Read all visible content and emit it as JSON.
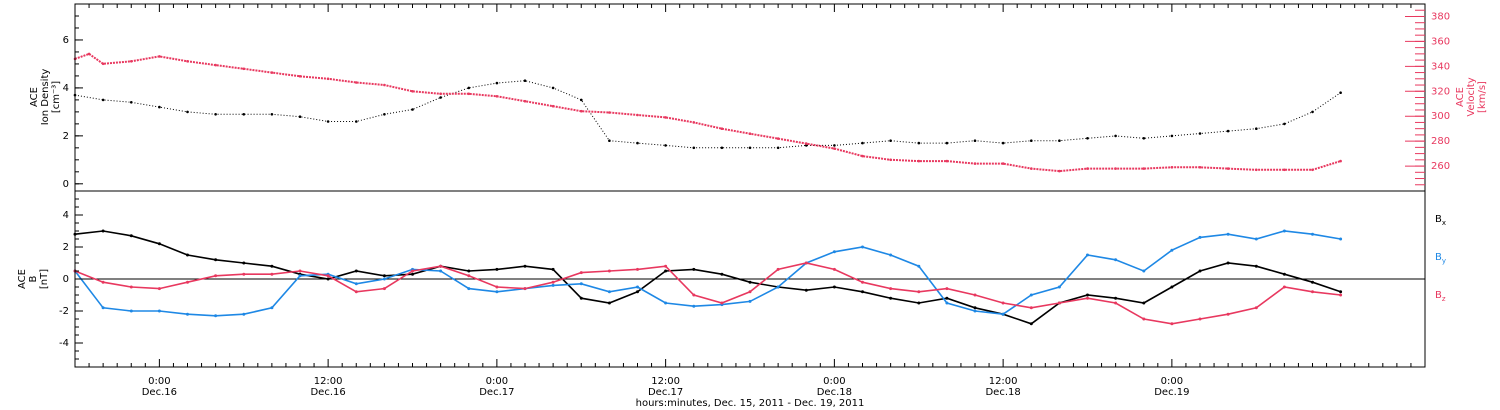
{
  "colors": {
    "black": "#000000",
    "blue": "#1e88e5",
    "red": "#e8385f"
  },
  "chart_data": [
    {
      "type": "scatter",
      "panel": "top",
      "left_axis_label_lines": [
        "ACE",
        "Ion Density",
        "[cm⁻³]"
      ],
      "right_axis_label_lines": [
        "ACE",
        "Velocity",
        "[km/s]"
      ],
      "ylim_left": [
        -0.3,
        7.5
      ],
      "ylim_right": [
        240,
        390
      ],
      "yticks_left": [
        "0",
        "2",
        "4",
        "6"
      ],
      "yticks_right": [
        "260",
        "280",
        "300",
        "320",
        "340",
        "360",
        "380"
      ],
      "series": [
        {
          "axis": "left",
          "color": "#000000",
          "x_hours": [
            0,
            2,
            4,
            6,
            8,
            10,
            12,
            14,
            16,
            18,
            20,
            22,
            24,
            26,
            28,
            30,
            32,
            34,
            36,
            38,
            40,
            42,
            44,
            46,
            48,
            50,
            52,
            54,
            56,
            58,
            60,
            62,
            64,
            66,
            68,
            70,
            72,
            74,
            76,
            78,
            80,
            82,
            84,
            86,
            88,
            90
          ],
          "values": [
            3.7,
            3.5,
            3.4,
            3.2,
            3.0,
            2.9,
            2.9,
            2.9,
            2.8,
            2.6,
            2.6,
            2.9,
            3.1,
            3.6,
            4.0,
            4.2,
            4.3,
            4.0,
            3.5,
            1.8,
            1.7,
            1.6,
            1.5,
            1.5,
            1.5,
            1.5,
            1.6,
            1.6,
            1.7,
            1.8,
            1.7,
            1.7,
            1.8,
            1.7,
            1.8,
            1.8,
            1.9,
            2.0,
            1.9,
            2.0,
            2.1,
            2.2,
            2.3,
            2.5,
            3.0,
            3.8
          ]
        },
        {
          "axis": "right",
          "color": "#e8385f",
          "x_hours": [
            0,
            1,
            2,
            4,
            6,
            8,
            10,
            12,
            14,
            16,
            18,
            20,
            22,
            24,
            26,
            28,
            30,
            32,
            34,
            36,
            38,
            40,
            42,
            44,
            46,
            48,
            50,
            52,
            54,
            56,
            58,
            60,
            62,
            64,
            66,
            68,
            70,
            72,
            74,
            76,
            78,
            80,
            82,
            84,
            86,
            88,
            90
          ],
          "values": [
            346,
            350,
            342,
            344,
            348,
            344,
            341,
            338,
            335,
            332,
            330,
            327,
            325,
            320,
            318,
            318,
            316,
            312,
            308,
            304,
            303,
            301,
            299,
            295,
            290,
            286,
            282,
            278,
            274,
            268,
            265,
            264,
            264,
            262,
            262,
            258,
            256,
            258,
            258,
            258,
            259,
            259,
            258,
            257,
            257,
            257,
            264
          ]
        }
      ]
    },
    {
      "type": "scatter",
      "panel": "bottom",
      "left_axis_label_lines": [
        "ACE",
        "B",
        "[nT]"
      ],
      "ylim": [
        -5.5,
        5.5
      ],
      "yticks": [
        "-4",
        "-2",
        "0",
        "2",
        "4"
      ],
      "series": [
        {
          "name": "B",
          "subscript": "x",
          "color": "#000000",
          "x_hours": [
            0,
            2,
            4,
            6,
            8,
            10,
            12,
            14,
            16,
            18,
            20,
            22,
            24,
            26,
            28,
            30,
            32,
            34,
            36,
            38,
            40,
            42,
            44,
            46,
            48,
            50,
            52,
            54,
            56,
            58,
            60,
            62,
            64,
            66,
            68,
            70,
            72,
            74,
            76,
            78,
            80,
            82,
            84,
            86,
            88,
            90
          ],
          "values": [
            2.8,
            3.0,
            2.7,
            2.2,
            1.5,
            1.2,
            1.0,
            0.8,
            0.3,
            0.0,
            0.5,
            0.2,
            0.3,
            0.8,
            0.5,
            0.6,
            0.8,
            0.6,
            -1.2,
            -1.5,
            -0.8,
            0.5,
            0.6,
            0.3,
            -0.2,
            -0.5,
            -0.7,
            -0.5,
            -0.8,
            -1.2,
            -1.5,
            -1.2,
            -1.8,
            -2.2,
            -2.8,
            -1.5,
            -1.0,
            -1.2,
            -1.5,
            -0.5,
            0.5,
            1.0,
            0.8,
            0.3,
            -0.2,
            -0.8
          ]
        },
        {
          "name": "B",
          "subscript": "y",
          "color": "#1e88e5",
          "x_hours": [
            0,
            2,
            4,
            6,
            8,
            10,
            12,
            14,
            16,
            18,
            20,
            22,
            24,
            26,
            28,
            30,
            32,
            34,
            36,
            38,
            40,
            42,
            44,
            46,
            48,
            50,
            52,
            54,
            56,
            58,
            60,
            62,
            64,
            66,
            68,
            70,
            72,
            74,
            76,
            78,
            80,
            82,
            84,
            86,
            88,
            90
          ],
          "values": [
            0.5,
            -1.8,
            -2.0,
            -2.0,
            -2.2,
            -2.3,
            -2.2,
            -1.8,
            0.2,
            0.3,
            -0.3,
            0.0,
            0.6,
            0.5,
            -0.6,
            -0.8,
            -0.6,
            -0.4,
            -0.3,
            -0.8,
            -0.5,
            -1.5,
            -1.7,
            -1.6,
            -1.4,
            -0.5,
            1.0,
            1.7,
            2.0,
            1.5,
            0.8,
            -1.5,
            -2.0,
            -2.2,
            -1.0,
            -0.5,
            1.5,
            1.2,
            0.5,
            1.8,
            2.6,
            2.8,
            2.5,
            3.0,
            2.8,
            2.5
          ]
        },
        {
          "name": "B",
          "subscript": "z",
          "color": "#e8385f",
          "x_hours": [
            0,
            2,
            4,
            6,
            8,
            10,
            12,
            14,
            16,
            18,
            20,
            22,
            24,
            26,
            28,
            30,
            32,
            34,
            36,
            38,
            40,
            42,
            44,
            46,
            48,
            50,
            52,
            54,
            56,
            58,
            60,
            62,
            64,
            66,
            68,
            70,
            72,
            74,
            76,
            78,
            80,
            82,
            84,
            86,
            88,
            90
          ],
          "values": [
            0.5,
            -0.2,
            -0.5,
            -0.6,
            -0.2,
            0.2,
            0.3,
            0.3,
            0.5,
            0.2,
            -0.8,
            -0.6,
            0.5,
            0.8,
            0.2,
            -0.5,
            -0.6,
            -0.2,
            0.4,
            0.5,
            0.6,
            0.8,
            -1.0,
            -1.5,
            -0.8,
            0.6,
            1.0,
            0.6,
            -0.2,
            -0.6,
            -0.8,
            -0.6,
            -1.0,
            -1.5,
            -1.8,
            -1.5,
            -1.2,
            -1.5,
            -2.5,
            -2.8,
            -2.5,
            -2.2,
            -1.8,
            -0.5,
            -0.8,
            -1.0
          ]
        }
      ]
    }
  ],
  "x_axis": {
    "total_hours": 96,
    "ticks": [
      {
        "hour": 6,
        "time": "0:00",
        "date": "Dec.16"
      },
      {
        "hour": 18,
        "time": "12:00",
        "date": "Dec.16"
      },
      {
        "hour": 30,
        "time": "0:00",
        "date": "Dec.17"
      },
      {
        "hour": 42,
        "time": "12:00",
        "date": "Dec.17"
      },
      {
        "hour": 54,
        "time": "0:00",
        "date": "Dec.18"
      },
      {
        "hour": 66,
        "time": "12:00",
        "date": "Dec.18"
      },
      {
        "hour": 78,
        "time": "0:00",
        "date": "Dec.19"
      }
    ],
    "label": "hours:minutes, Dec. 15, 2011 - Dec. 19, 2011"
  }
}
